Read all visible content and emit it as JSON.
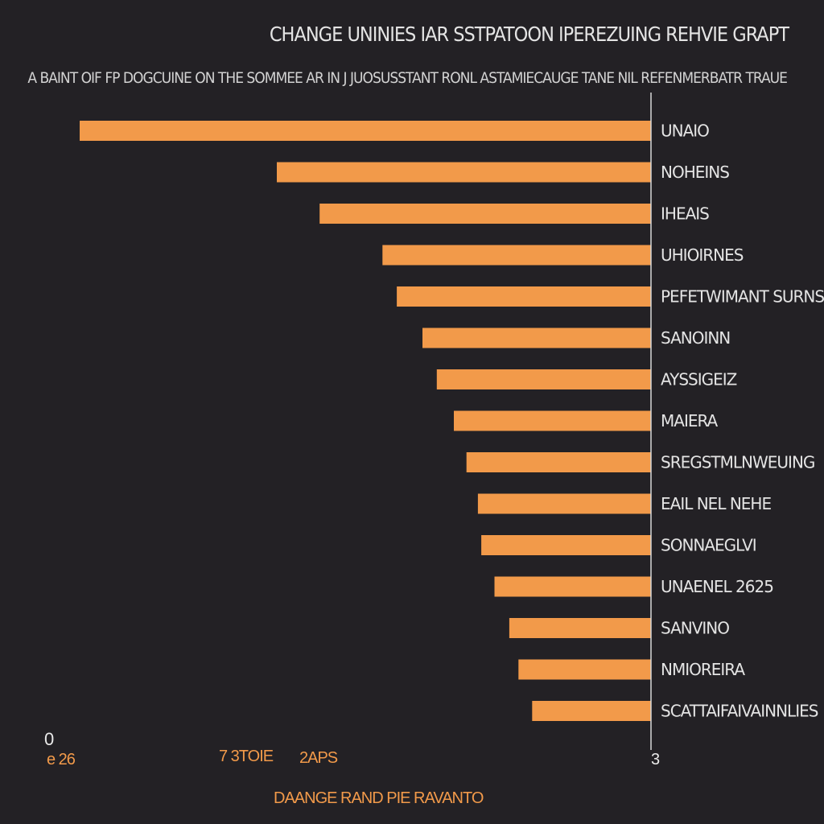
{
  "chart_data": {
    "type": "bar",
    "orientation": "horizontal",
    "title": "CHANGE UNINIES IAR SSTPATOON IPEREZUING REHVIE GRAPT",
    "subtitle": "A BAINT OIF FP DOGCUINE ON THE SOMMEE AR IN J JUOSUSSTANT RONL  ASTAMIECAUGE TANE NIL  REFENMERBATR TRAUE",
    "xlabel": "DAANGE RAND PIE RAVANTO",
    "x_tick_labels": [
      "0",
      "e 26",
      "7 3TOIE",
      "2APS",
      "3"
    ],
    "categories": [
      "UNAIO",
      "NOHEINS",
      "IHEAIS",
      "UHIOIRNES",
      "PEFETWIMANT SURNS",
      "SANOINN",
      "AYSSIGEIZ",
      "MAIERA",
      "SREGSTMLNWEUING",
      "EAIL NEL NEHE",
      "SONNAEGLVI",
      "UNAENEL 2625",
      "SANVINO",
      "NMIOREIRA",
      "SCATTAIFAIVAINNLIES"
    ],
    "values": [
      100,
      65.5,
      58,
      47,
      44.5,
      40,
      37.5,
      34.5,
      32.3,
      30.3,
      29.7,
      27.4,
      24.8,
      23.2,
      20.8
    ],
    "xlim": [
      0,
      100
    ],
    "grid": false,
    "legend": "none",
    "colors": {
      "bar": "#f29a4a",
      "background": "#232125",
      "text": "#e4e4e4",
      "axis": "#d8d8d8"
    }
  }
}
